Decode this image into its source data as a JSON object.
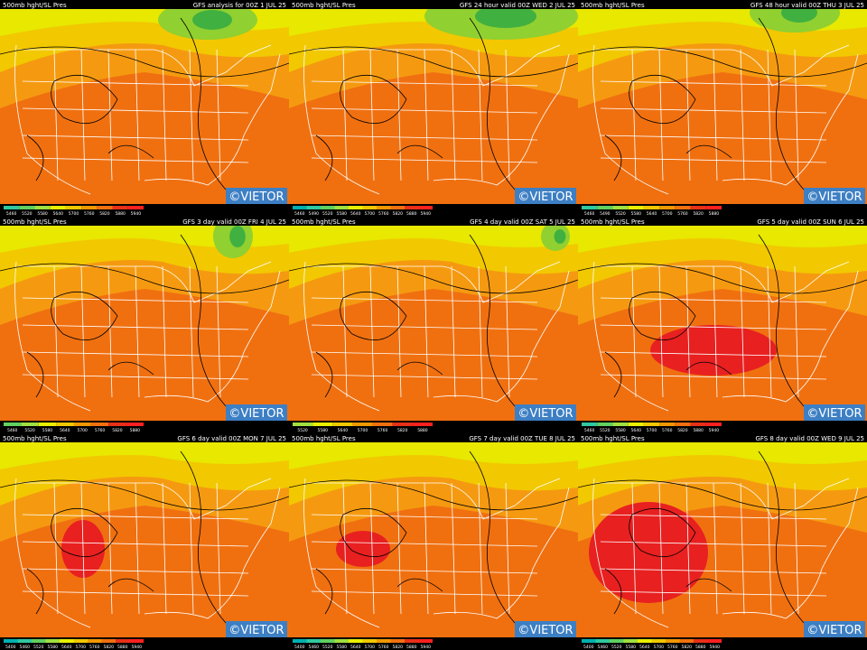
{
  "panels": [
    {
      "left_title": "500mb hght/SL Pres",
      "right_title": "GFS analysis for 00Z 1 JUL 25",
      "watermark": "©VIETOR",
      "colorbar_labels": [
        "5460",
        "5520",
        "5580",
        "5640",
        "5700",
        "5760",
        "5820",
        "5880",
        "5940"
      ]
    },
    {
      "left_title": "500mb hght/SL Pres",
      "right_title": "GFS 24 hour valid 00Z WED 2 JUL 25",
      "watermark": "©VIETOR",
      "colorbar_labels": [
        "5460",
        "5490",
        "5520",
        "5580",
        "5640",
        "5700",
        "5760",
        "5820",
        "5880",
        "5940"
      ]
    },
    {
      "left_title": "500mb hght/SL Pres",
      "right_title": "GFS 48 hour valid 00Z THU 3 JUL 25",
      "watermark": "©VIETOR",
      "colorbar_labels": [
        "5460",
        "5490",
        "5520",
        "5580",
        "5640",
        "5700",
        "5760",
        "5820",
        "5880"
      ]
    },
    {
      "left_title": "500mb hght/SL Pres",
      "right_title": "GFS 3 day valid 00Z FRI 4 JUL 25",
      "watermark": "©VIETOR",
      "colorbar_labels": [
        "5460",
        "5520",
        "5580",
        "5640",
        "5700",
        "5760",
        "5820",
        "5880"
      ]
    },
    {
      "left_title": "500mb hght/SL Pres",
      "right_title": "GFS 4 day valid 00Z SAT 5 JUL 25",
      "watermark": "©VIETOR",
      "colorbar_labels": [
        "5520",
        "5580",
        "5640",
        "5700",
        "5760",
        "5820",
        "5880"
      ]
    },
    {
      "left_title": "500mb hght/SL Pres",
      "right_title": "GFS 5 day valid 00Z SUN 6 JUL 25",
      "watermark": "©VIETOR",
      "colorbar_labels": [
        "5460",
        "5520",
        "5580",
        "5640",
        "5700",
        "5760",
        "5820",
        "5880",
        "5940"
      ]
    },
    {
      "left_title": "500mb hght/SL Pres",
      "right_title": "GFS 6 day valid 00Z MON 7 JUL 25",
      "watermark": "©VIETOR",
      "colorbar_labels": [
        "5400",
        "5460",
        "5520",
        "5580",
        "5640",
        "5700",
        "5760",
        "5820",
        "5880",
        "5940"
      ]
    },
    {
      "left_title": "500mb hght/SL Pres",
      "right_title": "GFS 7 day valid 00Z TUE 8 JUL 25",
      "watermark": "©VIETOR",
      "colorbar_labels": [
        "5400",
        "5460",
        "5520",
        "5580",
        "5640",
        "5700",
        "5760",
        "5820",
        "5880",
        "5940"
      ]
    },
    {
      "left_title": "500mb hght/SL Pres",
      "right_title": "GFS 8 day valid 00Z WED 9 JUL 25",
      "watermark": "©VIETOR",
      "colorbar_labels": [
        "5400",
        "5460",
        "5520",
        "5580",
        "5640",
        "5700",
        "5760",
        "5820",
        "5880",
        "5940"
      ]
    }
  ]
}
